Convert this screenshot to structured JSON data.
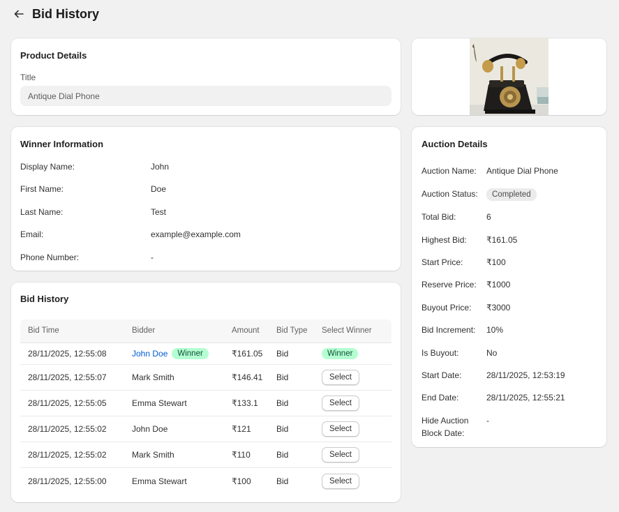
{
  "header": {
    "title": "Bid History"
  },
  "product": {
    "section_title": "Product Details",
    "title_label": "Title",
    "title_value": "Antique Dial Phone"
  },
  "winner": {
    "section_title": "Winner Information",
    "rows": [
      {
        "label": "Display Name:",
        "value": "John"
      },
      {
        "label": "First Name:",
        "value": "Doe"
      },
      {
        "label": "Last Name:",
        "value": "Test"
      },
      {
        "label": "Email:",
        "value": "example@example.com"
      },
      {
        "label": "Phone Number:",
        "value": "-"
      }
    ]
  },
  "bids": {
    "section_title": "Bid History",
    "columns": [
      "Bid Time",
      "Bidder",
      "Amount",
      "Bid Type",
      "Select Winner"
    ],
    "winner_badge": "Winner",
    "select_label": "Select",
    "rows": [
      {
        "time": "28/11/2025, 12:55:08",
        "bidder": "John Doe",
        "amount": "₹161.05",
        "type": "Bid"
      },
      {
        "time": "28/11/2025, 12:55:07",
        "bidder": "Mark Smith",
        "amount": "₹146.41",
        "type": "Bid"
      },
      {
        "time": "28/11/2025, 12:55:05",
        "bidder": "Emma Stewart",
        "amount": "₹133.1",
        "type": "Bid"
      },
      {
        "time": "28/11/2025, 12:55:02",
        "bidder": "John Doe",
        "amount": "₹121",
        "type": "Bid"
      },
      {
        "time": "28/11/2025, 12:55:02",
        "bidder": "Mark Smith",
        "amount": "₹110",
        "type": "Bid"
      },
      {
        "time": "28/11/2025, 12:55:00",
        "bidder": "Emma Stewart",
        "amount": "₹100",
        "type": "Bid"
      }
    ]
  },
  "auction": {
    "section_title": "Auction Details",
    "rows": [
      {
        "label": "Auction Name:",
        "value": "Antique Dial Phone"
      },
      {
        "label": "Auction Status:",
        "value": "Completed"
      },
      {
        "label": "Total Bid:",
        "value": "6"
      },
      {
        "label": "Highest Bid:",
        "value": "₹161.05"
      },
      {
        "label": "Start Price:",
        "value": "₹100"
      },
      {
        "label": "Reserve Price:",
        "value": "₹1000"
      },
      {
        "label": "Buyout Price:",
        "value": "₹3000"
      },
      {
        "label": "Bid Increment:",
        "value": "10%"
      },
      {
        "label": "Is Buyout:",
        "value": "No"
      },
      {
        "label": "Start Date:",
        "value": "28/11/2025, 12:53:19"
      },
      {
        "label": "End Date:",
        "value": "28/11/2025, 12:55:21"
      },
      {
        "label": "Hide Auction Block Date:",
        "value": "-"
      }
    ]
  },
  "icons": {
    "back": "arrow-left-icon"
  },
  "colors": {
    "link": "#005bd3",
    "winner_badge_bg": "#b4fed2",
    "page_bg": "#f1f1f1"
  }
}
